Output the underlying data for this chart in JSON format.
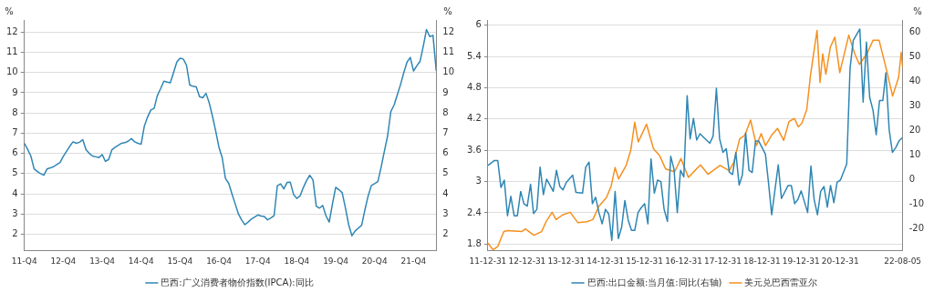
{
  "chart_data": [
    {
      "type": "line",
      "ylabel": "%",
      "y2label": "%",
      "legend": "bottom",
      "grid": "y",
      "marker": "none",
      "line_style": "solid",
      "categories": [
        "11-Q4",
        null,
        null,
        null,
        null,
        null,
        null,
        null,
        null,
        null,
        null,
        null,
        "12-Q4",
        null,
        null,
        null,
        null,
        null,
        null,
        null,
        null,
        null,
        null,
        null,
        "13-Q4",
        null,
        null,
        null,
        null,
        null,
        null,
        null,
        null,
        null,
        null,
        null,
        "14-Q4",
        null,
        null,
        null,
        null,
        null,
        null,
        null,
        null,
        null,
        null,
        null,
        "15-Q4",
        null,
        null,
        null,
        null,
        null,
        null,
        null,
        null,
        null,
        null,
        null,
        "16-Q4",
        null,
        null,
        null,
        null,
        null,
        null,
        null,
        null,
        null,
        null,
        null,
        "17-Q4",
        null,
        null,
        null,
        null,
        null,
        null,
        null,
        null,
        null,
        null,
        null,
        "18-Q4",
        null,
        null,
        null,
        null,
        null,
        null,
        null,
        null,
        null,
        null,
        null,
        "19-Q4",
        null,
        null,
        null,
        null,
        null,
        null,
        null,
        null,
        null,
        null,
        null,
        "20-Q4",
        null,
        null,
        null,
        null,
        null,
        null,
        null,
        null,
        null,
        null,
        null,
        "21-Q4",
        null,
        null,
        null,
        null,
        null,
        null,
        null
      ],
      "series": [
        {
          "name": "巴西:广义消费者物价指数(IPCA):同比",
          "color": "#2f86b4",
          "values": [
            6.5,
            6.2,
            5.87,
            5.23,
            5.1,
            5.0,
            4.92,
            5.23,
            5.28,
            5.34,
            5.45,
            5.55,
            5.85,
            6.1,
            6.35,
            6.57,
            6.5,
            6.55,
            6.68,
            6.18,
            6.0,
            5.87,
            5.83,
            5.79,
            5.94,
            5.6,
            5.7,
            6.18,
            6.3,
            6.4,
            6.5,
            6.53,
            6.6,
            6.73,
            6.57,
            6.5,
            6.45,
            7.36,
            7.8,
            8.15,
            8.23,
            8.86,
            9.2,
            9.57,
            9.53,
            9.49,
            10.0,
            10.52,
            10.71,
            10.67,
            10.36,
            9.38,
            9.32,
            9.29,
            8.81,
            8.75,
            8.97,
            8.5,
            7.84,
            7.1,
            6.3,
            5.79,
            4.76,
            4.52,
            4.0,
            3.5,
            3.0,
            2.7,
            2.47,
            2.6,
            2.75,
            2.85,
            2.95,
            2.9,
            2.87,
            2.71,
            2.8,
            2.91,
            4.4,
            4.49,
            4.24,
            4.56,
            4.57,
            3.97,
            3.77,
            3.89,
            4.3,
            4.65,
            4.92,
            4.68,
            3.39,
            3.29,
            3.42,
            2.91,
            2.6,
            3.5,
            4.32,
            4.2,
            4.05,
            3.3,
            2.47,
            1.92,
            2.16,
            2.3,
            2.44,
            3.2,
            3.89,
            4.41,
            4.5,
            4.6,
            5.31,
            6.1,
            6.86,
            8.07,
            8.39,
            8.9,
            9.41,
            10.0,
            10.52,
            10.75,
            10.08,
            10.33,
            10.55,
            11.3,
            12.13,
            11.78,
            11.84,
            10.08
          ]
        }
      ],
      "ylim": [
        1.2,
        12.6
      ],
      "yticks": [
        2,
        3,
        4,
        5,
        6,
        7,
        8,
        9,
        10,
        11,
        12
      ],
      "y2lim": [
        1.2,
        12.6
      ],
      "y2ticks": [
        2,
        3,
        4,
        5,
        6,
        7,
        8,
        9,
        10,
        11,
        12
      ]
    },
    {
      "type": "line",
      "y2label": "%",
      "legend": "bottom",
      "grid": "y",
      "marker": "none",
      "line_style": "solid",
      "series": [
        {
          "name": "巴西:出口金额:当月值:同比(右轴)",
          "color": "#2f86b4",
          "axis": "y2",
          "x": [
            "2012-01",
            "2012-03",
            "2012-04",
            "2012-05",
            "2012-06",
            "2012-07",
            "2012-08",
            "2012-09",
            "2012-10",
            "2012-11",
            "2012-12",
            "2013-01",
            "2013-02",
            "2013-03",
            "2013-04",
            "2013-05",
            "2013-06",
            "2013-07",
            "2013-09",
            "2013-10",
            "2013-11",
            "2013-12",
            "2014-01",
            "2014-03",
            "2014-04",
            "2014-06",
            "2014-07",
            "2014-08",
            "2014-09",
            "2014-10",
            "2014-11",
            "2014-12",
            "2015-01",
            "2015-02",
            "2015-03",
            "2015-04",
            "2015-05",
            "2015-06",
            "2015-07",
            "2015-08",
            "2015-09",
            "2015-10",
            "2015-11",
            "2015-12",
            "2016-01",
            "2016-02",
            "2016-03",
            "2016-04",
            "2016-05",
            "2016-06",
            "2016-07",
            "2016-08",
            "2016-09",
            "2016-10",
            "2016-11",
            "2016-12",
            "2017-01",
            "2017-02",
            "2017-03",
            "2017-04",
            "2017-05",
            "2017-06",
            "2017-07",
            "2017-09",
            "2017-10",
            "2017-11",
            "2017-12",
            "2018-01",
            "2018-02",
            "2018-03",
            "2018-04",
            "2018-05",
            "2018-06",
            "2018-07",
            "2018-08",
            "2018-09",
            "2018-10",
            "2018-11",
            "2018-12",
            "2019-02",
            "2019-03",
            "2019-04",
            "2019-06",
            "2019-07",
            "2019-09",
            "2019-10",
            "2019-11",
            "2019-12",
            "2020-01",
            "2020-03",
            "2020-04",
            "2020-05",
            "2020-06",
            "2020-07",
            "2020-08",
            "2020-09",
            "2020-10",
            "2020-11",
            "2020-12",
            "2021-01",
            "2021-03",
            "2021-04",
            "2021-05",
            "2021-07",
            "2021-08",
            "2021-09",
            "2021-10",
            "2021-11",
            "2021-12",
            "2022-01",
            "2022-02",
            "2022-03",
            "2022-04",
            "2022-05",
            "2022-06",
            "2022-07",
            "2022-08"
          ],
          "values": [
            5.8,
            7.8,
            7.8,
            -3.2,
            -0.2,
            -14.7,
            -6.8,
            -14.7,
            -14.7,
            -4.8,
            -9.8,
            -10.8,
            -1.9,
            -13.8,
            -12.1,
            5.1,
            -6.1,
            0.2,
            -4.8,
            3.8,
            -2.8,
            -4.2,
            -1.1,
            1.8,
            -5.2,
            -5.5,
            5.1,
            7.1,
            -9.8,
            -7.2,
            -13.4,
            -18.0,
            -12.1,
            -14.1,
            -24.7,
            -4.8,
            -24.0,
            -19.4,
            -8.5,
            -16.5,
            -20.7,
            -20.7,
            -13.4,
            -11.4,
            -9.8,
            -18.0,
            8.4,
            -5.5,
            -0.2,
            -0.8,
            -12.1,
            -17.0,
            9.5,
            4.4,
            -13.4,
            3.8,
            1.1,
            34.2,
            16.6,
            24.9,
            16.1,
            18.7,
            17.4,
            14.8,
            17.7,
            37.2,
            16.6,
            11.1,
            12.6,
            3.1,
            2.1,
            11.1,
            -2.2,
            1.8,
            19.0,
            3.8,
            2.9,
            15.7,
            15.7,
            10.4,
            -0.8,
            -14.3,
            6.0,
            -7.7,
            -2.4,
            -2.4,
            -9.8,
            -8.1,
            -4.6,
            -13.4,
            5.5,
            -8.1,
            -14.3,
            -4.8,
            -2.8,
            -11.2,
            -2.4,
            -9.4,
            -1.1,
            -0.2,
            6.4,
            45.4,
            56.7,
            61.3,
            31.6,
            56.0,
            33.5,
            28.3,
            18.3,
            32.2,
            32.2,
            43.5,
            20.3,
            11.1,
            13.0,
            15.7,
            17.0
          ]
        },
        {
          "name": "美元兑巴西雷亚尔",
          "color": "#f5901e",
          "x": [
            "2011-12-31",
            "2012-02-17",
            "2012-03-31",
            "2012-05-28",
            "2012-07-03",
            "2012-11-12",
            "2012-12-14",
            "2013-03-05",
            "2013-05-15",
            "2013-06-26",
            "2013-08-21",
            "2013-09-27",
            "2013-11-27",
            "2014-02-06",
            "2014-04-19",
            "2014-07-12",
            "2014-09-05",
            "2014-11-02",
            "2015-01-10",
            "2015-02-24",
            "2015-04-01",
            "2015-05-04",
            "2015-07-13",
            "2015-08-25",
            "2015-10-01",
            "2015-11-03",
            "2016-01-19",
            "2016-03-24",
            "2016-05-20",
            "2016-07-16",
            "2016-10-08",
            "2016-12-05",
            "2017-02-13",
            "2017-06-05",
            "2017-08-14",
            "2017-12-05",
            "2018-03-01",
            "2018-04-12",
            "2018-06-06",
            "2018-07-25",
            "2018-09-16",
            "2018-11-10",
            "2018-12-24",
            "2019-02-02",
            "2019-04-01",
            "2019-05-25",
            "2019-07-22",
            "2019-09-09",
            "2019-10-30",
            "2019-12-05",
            "2020-01-07",
            "2020-02-22",
            "2020-03-27",
            "2020-05-28",
            "2020-06-25",
            "2020-07-20",
            "2020-08-18",
            "2020-09-29",
            "2020-11-10",
            "2020-12-26",
            "2021-03-20",
            "2021-05-15",
            "2021-06-27",
            "2021-09-05",
            "2021-11-01",
            "2021-12-28",
            "2022-03-10",
            "2022-05-03",
            "2022-06-28",
            "2022-07-22",
            "2022-08-05"
          ],
          "values": [
            1.82,
            1.69,
            1.75,
            2.04,
            2.06,
            2.04,
            2.09,
            1.97,
            2.04,
            2.23,
            2.41,
            2.27,
            2.36,
            2.41,
            2.21,
            2.23,
            2.27,
            2.53,
            2.69,
            2.92,
            3.27,
            3.05,
            3.31,
            3.6,
            4.14,
            3.76,
            4.1,
            3.63,
            3.5,
            3.24,
            3.19,
            3.44,
            3.08,
            3.32,
            3.14,
            3.31,
            3.21,
            3.37,
            3.82,
            3.89,
            4.18,
            3.69,
            3.92,
            3.69,
            3.89,
            4.02,
            3.79,
            4.15,
            4.21,
            4.05,
            4.12,
            4.38,
            5.03,
            5.9,
            4.9,
            5.45,
            5.06,
            5.58,
            5.77,
            5.09,
            5.81,
            5.45,
            5.25,
            5.45,
            5.71,
            5.71,
            5.12,
            4.64,
            5.0,
            5.48,
            5.19
          ]
        }
      ],
      "xlim": [
        "2011-12-31",
        "2022-08-05"
      ],
      "xticks": [
        {
          "value": "2011-12-31",
          "label": "11-12-31"
        },
        {
          "value": "2012-12-31",
          "label": "12-12-31"
        },
        {
          "value": "2013-12-31",
          "label": "13-12-31"
        },
        {
          "value": "2014-12-31",
          "label": "14-12-31"
        },
        {
          "value": "2015-12-31",
          "label": "15-12-31"
        },
        {
          "value": "2016-12-31",
          "label": "16-12-31"
        },
        {
          "value": "2017-12-31",
          "label": "17-12-31"
        },
        {
          "value": "2018-12-31",
          "label": "18-12-31"
        },
        {
          "value": "2019-12-31",
          "label": "19-12-31"
        },
        {
          "value": "2020-12-31",
          "label": "20-12-31"
        },
        {
          "value": "2022-08-05",
          "label": "22-08-05"
        }
      ],
      "ylim": [
        1.68,
        6.1
      ],
      "yticks": [
        1.8,
        2.4,
        3,
        3.6,
        4.2,
        4.8,
        5.4,
        6
      ],
      "y2lim": [
        -28.8,
        65
      ],
      "y2ticks": [
        -20,
        -10,
        0,
        10,
        20,
        30,
        40,
        50,
        60
      ]
    }
  ]
}
